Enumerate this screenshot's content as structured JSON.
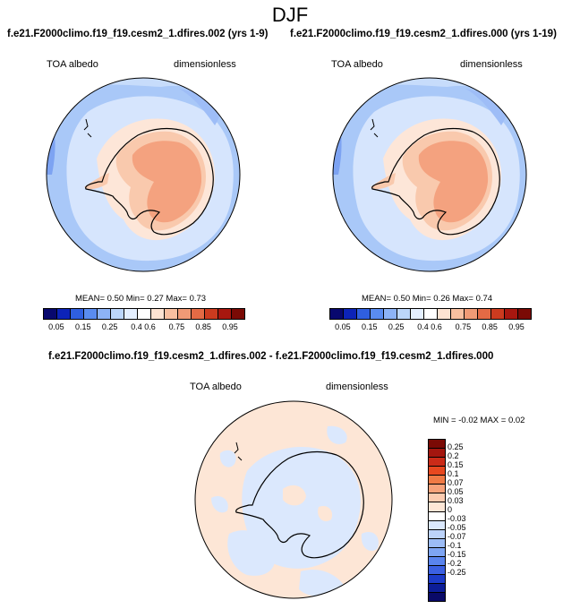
{
  "figure": {
    "season": "DJF"
  },
  "panels": [
    {
      "title": "f.e21.F2000climo.f19_f19.cesm2_1.dfires.002 (yrs 1-9)",
      "variable": "TOA albedo",
      "units": "dimensionless",
      "mean_label": "MEAN=",
      "mean": "0.50",
      "min_label": "Min=",
      "min": "0.27",
      "max_label": "Max=",
      "max": "0.73"
    },
    {
      "title": "f.e21.F2000climo.f19_f19.cesm2_1.dfires.000 (yrs 1-19)",
      "variable": "TOA albedo",
      "units": "dimensionless",
      "mean_label": "MEAN=",
      "mean": "0.50",
      "min_label": "Min=",
      "min": "0.26",
      "max_label": "Max=",
      "max": "0.74"
    },
    {
      "title": "f.e21.F2000climo.f19_f19.cesm2_1.dfires.002 - f.e21.F2000climo.f19_f19.cesm2_1.dfires.000",
      "variable": "TOA albedo",
      "units": "dimensionless",
      "min_label": "MIN =",
      "min": "-0.02",
      "max_label": "MAX =",
      "max": "0.02"
    }
  ],
  "colorbars": {
    "absolute": {
      "colors": [
        "#08086e",
        "#0c23b8",
        "#2f5fe0",
        "#5a8cf0",
        "#8db3f6",
        "#bcd6fa",
        "#e4efff",
        "#ffffff",
        "#fde3d2",
        "#f8bfa0",
        "#f09a76",
        "#e36a45",
        "#cc3b1f",
        "#a8170f",
        "#7a0a05"
      ],
      "tick_labels": [
        "0.05",
        "0.15",
        "0.25",
        "0.4",
        "0.6",
        "0.75",
        "0.85",
        "0.95"
      ]
    },
    "difference": {
      "colors": [
        "#7a0a05",
        "#a3160f",
        "#cb2b18",
        "#e8481f",
        "#f07a45",
        "#f7a27a",
        "#fccbb0",
        "#fde6d6",
        "#ffffff",
        "#dbe8fd",
        "#bcd3fa",
        "#9cbcf6",
        "#7ea5f3",
        "#5a84ee",
        "#3b60e2",
        "#1c3bc9",
        "#0c1d98",
        "#0a0a68"
      ],
      "tick_labels": [
        "0.25",
        "0.2",
        "0.15",
        "0.1",
        "0.07",
        "0.05",
        "0.03",
        "0",
        "-0.03",
        "-0.05",
        "-0.07",
        "-0.1",
        "-0.15",
        "-0.2",
        "-0.25"
      ]
    }
  },
  "chart_data": [
    {
      "type": "heatmap",
      "title": "f.e21.F2000climo.f19_f19.cesm2_1.dfires.002 (yrs 1-9)",
      "projection": "south-polar stereographic",
      "variable": "TOA albedo",
      "units": "dimensionless",
      "levels": [
        0.05,
        0.1,
        0.15,
        0.2,
        0.25,
        0.3,
        0.4,
        0.5,
        0.6,
        0.7,
        0.75,
        0.8,
        0.85,
        0.9,
        0.95
      ],
      "stats": {
        "mean": 0.5,
        "min": 0.27,
        "max": 0.73
      }
    },
    {
      "type": "heatmap",
      "title": "f.e21.F2000climo.f19_f19.cesm2_1.dfires.000 (yrs 1-19)",
      "projection": "south-polar stereographic",
      "variable": "TOA albedo",
      "units": "dimensionless",
      "levels": [
        0.05,
        0.1,
        0.15,
        0.2,
        0.25,
        0.3,
        0.4,
        0.5,
        0.6,
        0.7,
        0.75,
        0.8,
        0.85,
        0.9,
        0.95
      ],
      "stats": {
        "mean": 0.5,
        "min": 0.26,
        "max": 0.74
      }
    },
    {
      "type": "heatmap",
      "title": "f.e21.F2000climo.f19_f19.cesm2_1.dfires.002 - f.e21.F2000climo.f19_f19.cesm2_1.dfires.000",
      "projection": "south-polar stereographic",
      "variable": "TOA albedo",
      "units": "dimensionless",
      "levels": [
        -0.25,
        -0.2,
        -0.15,
        -0.1,
        -0.07,
        -0.05,
        -0.03,
        0,
        0.03,
        0.05,
        0.07,
        0.1,
        0.15,
        0.2,
        0.25
      ],
      "stats": {
        "min": -0.02,
        "max": 0.02
      }
    }
  ]
}
